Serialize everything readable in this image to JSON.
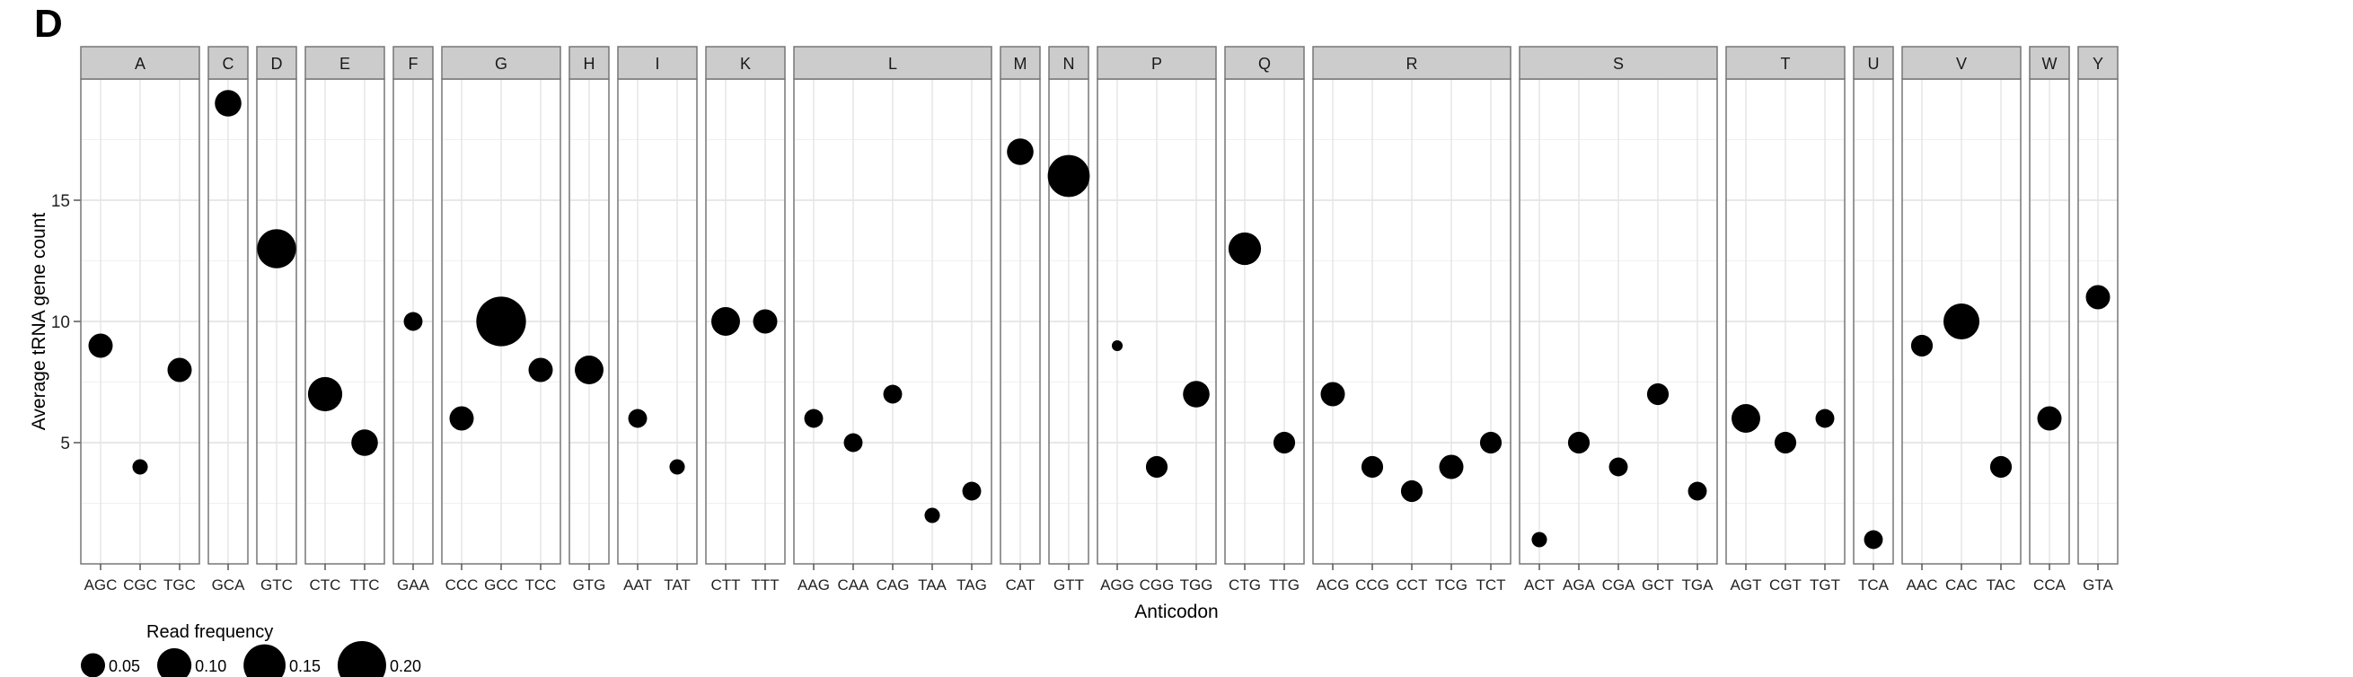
{
  "panel_label": "D",
  "chart_data": {
    "type": "scatter",
    "facet_type": "faceted-dot-plot",
    "xlabel": "Anticodon",
    "ylabel": "Average tRNA gene count",
    "ylim": [
      0,
      20
    ],
    "y_ticks": [
      5,
      10,
      15
    ],
    "grid": true,
    "size_legend": {
      "title": "Read frequency",
      "placement": "bottom-left",
      "entries": [
        {
          "value": 0.05,
          "label": "0.05"
        },
        {
          "value": 0.1,
          "label": "0.10"
        },
        {
          "value": 0.15,
          "label": "0.15"
        },
        {
          "value": 0.2,
          "label": "0.20"
        }
      ]
    },
    "facets": [
      {
        "name": "A",
        "points": [
          {
            "x": "AGC",
            "y": 9,
            "size": 0.05
          },
          {
            "x": "CGC",
            "y": 4,
            "size": 0.02
          },
          {
            "x": "TGC",
            "y": 8,
            "size": 0.05
          }
        ]
      },
      {
        "name": "C",
        "points": [
          {
            "x": "GCA",
            "y": 19,
            "size": 0.06
          }
        ]
      },
      {
        "name": "D",
        "points": [
          {
            "x": "GTC",
            "y": 13,
            "size": 0.13
          }
        ]
      },
      {
        "name": "E",
        "points": [
          {
            "x": "CTC",
            "y": 7,
            "size": 0.1
          },
          {
            "x": "TTC",
            "y": 5,
            "size": 0.06
          }
        ]
      },
      {
        "name": "F",
        "points": [
          {
            "x": "GAA",
            "y": 10,
            "size": 0.03
          }
        ]
      },
      {
        "name": "G",
        "points": [
          {
            "x": "CCC",
            "y": 6,
            "size": 0.05
          },
          {
            "x": "GCC",
            "y": 10,
            "size": 0.21
          },
          {
            "x": "TCC",
            "y": 8,
            "size": 0.05
          }
        ]
      },
      {
        "name": "H",
        "points": [
          {
            "x": "GTG",
            "y": 8,
            "size": 0.07
          }
        ]
      },
      {
        "name": "I",
        "points": [
          {
            "x": "AAT",
            "y": 6,
            "size": 0.03
          },
          {
            "x": "TAT",
            "y": 4,
            "size": 0.02
          }
        ]
      },
      {
        "name": "K",
        "points": [
          {
            "x": "CTT",
            "y": 10,
            "size": 0.07
          },
          {
            "x": "TTT",
            "y": 10,
            "size": 0.05
          }
        ]
      },
      {
        "name": "L",
        "points": [
          {
            "x": "AAG",
            "y": 6,
            "size": 0.03
          },
          {
            "x": "CAA",
            "y": 5,
            "size": 0.03
          },
          {
            "x": "CAG",
            "y": 7,
            "size": 0.03
          },
          {
            "x": "TAA",
            "y": 2,
            "size": 0.02
          },
          {
            "x": "TAG",
            "y": 3,
            "size": 0.03
          }
        ]
      },
      {
        "name": "M",
        "points": [
          {
            "x": "CAT",
            "y": 17,
            "size": 0.06
          }
        ]
      },
      {
        "name": "N",
        "points": [
          {
            "x": "GTT",
            "y": 16,
            "size": 0.15
          }
        ]
      },
      {
        "name": "P",
        "points": [
          {
            "x": "AGG",
            "y": 9,
            "size": 0.01
          },
          {
            "x": "CGG",
            "y": 4,
            "size": 0.04
          },
          {
            "x": "TGG",
            "y": 7,
            "size": 0.06
          }
        ]
      },
      {
        "name": "Q",
        "points": [
          {
            "x": "CTG",
            "y": 13,
            "size": 0.09
          },
          {
            "x": "TTG",
            "y": 5,
            "size": 0.04
          }
        ]
      },
      {
        "name": "R",
        "points": [
          {
            "x": "ACG",
            "y": 7,
            "size": 0.05
          },
          {
            "x": "CCG",
            "y": 4,
            "size": 0.04
          },
          {
            "x": "CCT",
            "y": 3,
            "size": 0.04
          },
          {
            "x": "TCG",
            "y": 4,
            "size": 0.05
          },
          {
            "x": "TCT",
            "y": 5,
            "size": 0.04
          }
        ]
      },
      {
        "name": "S",
        "points": [
          {
            "x": "ACT",
            "y": 1,
            "size": 0.02
          },
          {
            "x": "AGA",
            "y": 5,
            "size": 0.04
          },
          {
            "x": "CGA",
            "y": 4,
            "size": 0.03
          },
          {
            "x": "GCT",
            "y": 7,
            "size": 0.04
          },
          {
            "x": "TGA",
            "y": 3,
            "size": 0.03
          }
        ]
      },
      {
        "name": "T",
        "points": [
          {
            "x": "AGT",
            "y": 6,
            "size": 0.07
          },
          {
            "x": "CGT",
            "y": 5,
            "size": 0.04
          },
          {
            "x": "TGT",
            "y": 6,
            "size": 0.03
          }
        ]
      },
      {
        "name": "U",
        "points": [
          {
            "x": "TCA",
            "y": 1,
            "size": 0.03
          }
        ]
      },
      {
        "name": "V",
        "points": [
          {
            "x": "AAC",
            "y": 9,
            "size": 0.04
          },
          {
            "x": "CAC",
            "y": 10,
            "size": 0.11
          },
          {
            "x": "TAC",
            "y": 4,
            "size": 0.04
          }
        ]
      },
      {
        "name": "W",
        "points": [
          {
            "x": "CCA",
            "y": 6,
            "size": 0.05
          }
        ]
      },
      {
        "name": "Y",
        "points": [
          {
            "x": "GTA",
            "y": 11,
            "size": 0.05
          }
        ]
      }
    ]
  }
}
